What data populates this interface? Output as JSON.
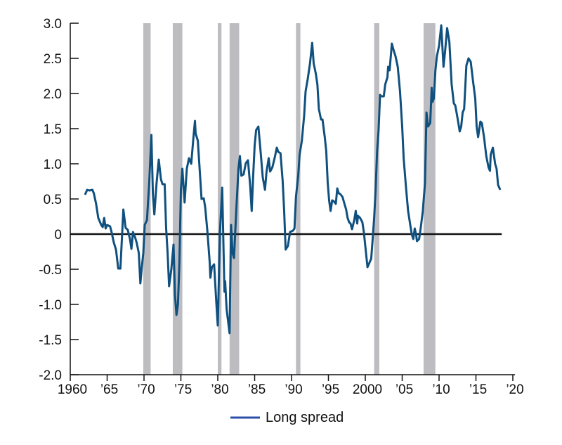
{
  "chart_data": {
    "type": "line",
    "title": "",
    "xlabel": "",
    "ylabel": "",
    "xlim": [
      1960,
      2020.3
    ],
    "ylim": [
      -2.0,
      3.0
    ],
    "x_ticks": [
      1960,
      1965,
      1970,
      1975,
      1980,
      1985,
      1990,
      1995,
      2000,
      2005,
      2010,
      2015,
      2020
    ],
    "x_tick_labels": [
      "1960",
      "’65",
      "’70",
      "’75",
      "’80",
      "’85",
      "’90",
      "’95",
      "2000",
      "’05",
      "’10",
      "’15",
      "’20"
    ],
    "y_ticks": [
      -2.0,
      -1.5,
      -1.0,
      -0.5,
      0,
      0.5,
      1.0,
      1.5,
      2.0,
      2.5,
      3.0
    ],
    "y_tick_labels": [
      "-2.0",
      "-1.5",
      "-1.0",
      "-0.5",
      "0",
      "0.5",
      "1.0",
      "1.5",
      "2.0",
      "2.5",
      "3.0"
    ],
    "grid": false,
    "zero_line": true,
    "legend": {
      "placement": "bottom-center",
      "entries": [
        "Long spread"
      ]
    },
    "recessions": [
      [
        1969.9,
        1970.9
      ],
      [
        1973.9,
        1975.2
      ],
      [
        1980.0,
        1980.5
      ],
      [
        1981.6,
        1982.9
      ],
      [
        1990.6,
        1991.2
      ],
      [
        2001.2,
        2001.9
      ],
      [
        2007.9,
        2009.5
      ]
    ],
    "colors": {
      "line": "#0f507e",
      "legend_line": "#2b4fa8",
      "recession": "#bdbdc1",
      "axis": "#111111"
    },
    "series": [
      {
        "name": "Long spread",
        "points": [
          [
            1962.0,
            0.56
          ],
          [
            1962.3,
            0.63
          ],
          [
            1962.6,
            0.62
          ],
          [
            1963.0,
            0.63
          ],
          [
            1963.2,
            0.58
          ],
          [
            1963.5,
            0.43
          ],
          [
            1963.8,
            0.23
          ],
          [
            1964.2,
            0.13
          ],
          [
            1964.4,
            0.1
          ],
          [
            1964.6,
            0.23
          ],
          [
            1964.8,
            0.08
          ],
          [
            1965.0,
            0.13
          ],
          [
            1965.4,
            0.11
          ],
          [
            1965.6,
            0.03
          ],
          [
            1965.9,
            -0.12
          ],
          [
            1966.2,
            -0.22
          ],
          [
            1966.5,
            -0.49
          ],
          [
            1966.8,
            -0.49
          ],
          [
            1967.0,
            -0.07
          ],
          [
            1967.2,
            0.35
          ],
          [
            1967.5,
            0.09
          ],
          [
            1967.8,
            0.06
          ],
          [
            1968.1,
            -0.07
          ],
          [
            1968.3,
            -0.21
          ],
          [
            1968.5,
            0.03
          ],
          [
            1968.8,
            -0.05
          ],
          [
            1969.0,
            -0.12
          ],
          [
            1969.3,
            -0.27
          ],
          [
            1969.5,
            -0.7
          ],
          [
            1969.7,
            -0.47
          ],
          [
            1969.9,
            -0.27
          ],
          [
            1970.1,
            0.13
          ],
          [
            1970.4,
            0.2
          ],
          [
            1970.7,
            0.73
          ],
          [
            1971.0,
            1.41
          ],
          [
            1971.2,
            0.58
          ],
          [
            1971.4,
            0.28
          ],
          [
            1971.7,
            0.73
          ],
          [
            1972.0,
            1.06
          ],
          [
            1972.3,
            0.78
          ],
          [
            1972.5,
            0.71
          ],
          [
            1972.8,
            0.71
          ],
          [
            1973.0,
            0.08
          ],
          [
            1973.2,
            -0.27
          ],
          [
            1973.4,
            -0.74
          ],
          [
            1973.7,
            -0.5
          ],
          [
            1974.0,
            -0.15
          ],
          [
            1974.2,
            -0.87
          ],
          [
            1974.4,
            -1.15
          ],
          [
            1974.6,
            -1.0
          ],
          [
            1974.8,
            -0.4
          ],
          [
            1975.0,
            0.63
          ],
          [
            1975.2,
            0.93
          ],
          [
            1975.5,
            0.45
          ],
          [
            1975.8,
            0.93
          ],
          [
            1976.1,
            1.08
          ],
          [
            1976.4,
            1.0
          ],
          [
            1976.7,
            1.38
          ],
          [
            1976.9,
            1.61
          ],
          [
            1977.0,
            1.43
          ],
          [
            1977.3,
            1.33
          ],
          [
            1977.6,
            0.83
          ],
          [
            1977.8,
            0.5
          ],
          [
            1978.1,
            0.51
          ],
          [
            1978.3,
            0.38
          ],
          [
            1978.6,
            0.03
          ],
          [
            1978.9,
            -0.4
          ],
          [
            1979.0,
            -0.62
          ],
          [
            1979.2,
            -0.47
          ],
          [
            1979.5,
            -0.43
          ],
          [
            1979.8,
            -0.97
          ],
          [
            1980.0,
            -1.3
          ],
          [
            1980.3,
            0.03
          ],
          [
            1980.6,
            0.66
          ],
          [
            1980.9,
            -0.82
          ],
          [
            1981.0,
            -0.67
          ],
          [
            1981.2,
            -1.07
          ],
          [
            1981.6,
            -1.41
          ],
          [
            1981.8,
            0.13
          ],
          [
            1982.0,
            -0.27
          ],
          [
            1982.2,
            -0.34
          ],
          [
            1982.5,
            0.33
          ],
          [
            1982.8,
            0.93
          ],
          [
            1983.0,
            1.11
          ],
          [
            1983.2,
            0.83
          ],
          [
            1983.5,
            0.85
          ],
          [
            1983.8,
            1.01
          ],
          [
            1984.1,
            1.05
          ],
          [
            1984.4,
            0.68
          ],
          [
            1984.6,
            0.33
          ],
          [
            1984.8,
            0.83
          ],
          [
            1985.0,
            1.26
          ],
          [
            1985.2,
            1.48
          ],
          [
            1985.5,
            1.53
          ],
          [
            1985.8,
            1.18
          ],
          [
            1986.1,
            0.81
          ],
          [
            1986.4,
            0.63
          ],
          [
            1986.6,
            0.88
          ],
          [
            1986.9,
            1.08
          ],
          [
            1987.1,
            0.89
          ],
          [
            1987.4,
            0.95
          ],
          [
            1987.7,
            1.08
          ],
          [
            1988.0,
            1.23
          ],
          [
            1988.2,
            1.17
          ],
          [
            1988.5,
            1.15
          ],
          [
            1988.8,
            0.75
          ],
          [
            1989.0,
            0.33
          ],
          [
            1989.2,
            -0.22
          ],
          [
            1989.5,
            -0.17
          ],
          [
            1989.8,
            0.03
          ],
          [
            1990.2,
            0.05
          ],
          [
            1990.4,
            0.08
          ],
          [
            1990.6,
            0.53
          ],
          [
            1990.9,
            0.83
          ],
          [
            1991.1,
            1.13
          ],
          [
            1991.4,
            1.33
          ],
          [
            1991.7,
            1.68
          ],
          [
            1991.9,
            2.03
          ],
          [
            1992.2,
            2.21
          ],
          [
            1992.5,
            2.43
          ],
          [
            1992.8,
            2.72
          ],
          [
            1993.0,
            2.43
          ],
          [
            1993.3,
            2.28
          ],
          [
            1993.5,
            2.13
          ],
          [
            1993.7,
            1.78
          ],
          [
            1994.0,
            1.63
          ],
          [
            1994.2,
            1.63
          ],
          [
            1994.5,
            1.38
          ],
          [
            1994.7,
            1.18
          ],
          [
            1994.9,
            0.73
          ],
          [
            1995.1,
            0.48
          ],
          [
            1995.3,
            0.33
          ],
          [
            1995.5,
            0.48
          ],
          [
            1995.7,
            0.47
          ],
          [
            1996.0,
            0.43
          ],
          [
            1996.2,
            0.65
          ],
          [
            1996.4,
            0.58
          ],
          [
            1996.6,
            0.57
          ],
          [
            1996.9,
            0.53
          ],
          [
            1997.1,
            0.46
          ],
          [
            1997.4,
            0.35
          ],
          [
            1997.6,
            0.23
          ],
          [
            1997.8,
            0.17
          ],
          [
            1998.0,
            0.15
          ],
          [
            1998.2,
            0.07
          ],
          [
            1998.5,
            0.2
          ],
          [
            1998.7,
            0.33
          ],
          [
            1998.9,
            0.15
          ],
          [
            1999.0,
            0.26
          ],
          [
            1999.3,
            0.23
          ],
          [
            1999.6,
            0.17
          ],
          [
            1999.8,
            0.03
          ],
          [
            2000.0,
            -0.17
          ],
          [
            2000.3,
            -0.47
          ],
          [
            2000.5,
            -0.42
          ],
          [
            2000.8,
            -0.35
          ],
          [
            2001.0,
            -0.07
          ],
          [
            2001.2,
            0.23
          ],
          [
            2001.4,
            0.63
          ],
          [
            2001.6,
            1.18
          ],
          [
            2001.8,
            1.48
          ],
          [
            2002.0,
            1.98
          ],
          [
            2002.2,
            1.96
          ],
          [
            2002.5,
            1.96
          ],
          [
            2002.7,
            2.13
          ],
          [
            2003.0,
            2.23
          ],
          [
            2003.1,
            2.38
          ],
          [
            2003.3,
            2.33
          ],
          [
            2003.6,
            2.71
          ],
          [
            2003.8,
            2.63
          ],
          [
            2004.1,
            2.53
          ],
          [
            2004.4,
            2.38
          ],
          [
            2004.7,
            2.03
          ],
          [
            2005.0,
            1.53
          ],
          [
            2005.2,
            1.08
          ],
          [
            2005.5,
            0.68
          ],
          [
            2005.8,
            0.33
          ],
          [
            2006.1,
            0.13
          ],
          [
            2006.3,
            0.0
          ],
          [
            2006.5,
            -0.07
          ],
          [
            2006.7,
            0.08
          ],
          [
            2006.9,
            -0.02
          ],
          [
            2007.0,
            -0.1
          ],
          [
            2007.3,
            -0.07
          ],
          [
            2007.5,
            0.08
          ],
          [
            2007.8,
            0.33
          ],
          [
            2008.1,
            0.73
          ],
          [
            2008.3,
            1.73
          ],
          [
            2008.5,
            1.53
          ],
          [
            2008.8,
            1.58
          ],
          [
            2009.0,
            2.08
          ],
          [
            2009.1,
            1.88
          ],
          [
            2009.3,
            1.93
          ],
          [
            2009.5,
            2.33
          ],
          [
            2009.7,
            2.53
          ],
          [
            2010.0,
            2.68
          ],
          [
            2010.3,
            2.97
          ],
          [
            2010.6,
            2.38
          ],
          [
            2010.8,
            2.58
          ],
          [
            2011.1,
            2.93
          ],
          [
            2011.4,
            2.73
          ],
          [
            2011.7,
            2.13
          ],
          [
            2012.0,
            1.86
          ],
          [
            2012.2,
            1.83
          ],
          [
            2012.5,
            1.65
          ],
          [
            2012.8,
            1.46
          ],
          [
            2013.0,
            1.53
          ],
          [
            2013.2,
            1.73
          ],
          [
            2013.4,
            1.78
          ],
          [
            2013.7,
            2.4
          ],
          [
            2014.0,
            2.5
          ],
          [
            2014.3,
            2.45
          ],
          [
            2014.6,
            2.18
          ],
          [
            2014.9,
            1.93
          ],
          [
            2015.1,
            1.53
          ],
          [
            2015.3,
            1.38
          ],
          [
            2015.6,
            1.6
          ],
          [
            2015.8,
            1.58
          ],
          [
            2016.1,
            1.38
          ],
          [
            2016.4,
            1.11
          ],
          [
            2016.7,
            0.95
          ],
          [
            2016.9,
            0.9
          ],
          [
            2017.0,
            1.13
          ],
          [
            2017.3,
            1.23
          ],
          [
            2017.6,
            1.0
          ],
          [
            2017.8,
            0.93
          ],
          [
            2018.0,
            0.7
          ],
          [
            2018.3,
            0.63
          ]
        ]
      }
    ]
  }
}
